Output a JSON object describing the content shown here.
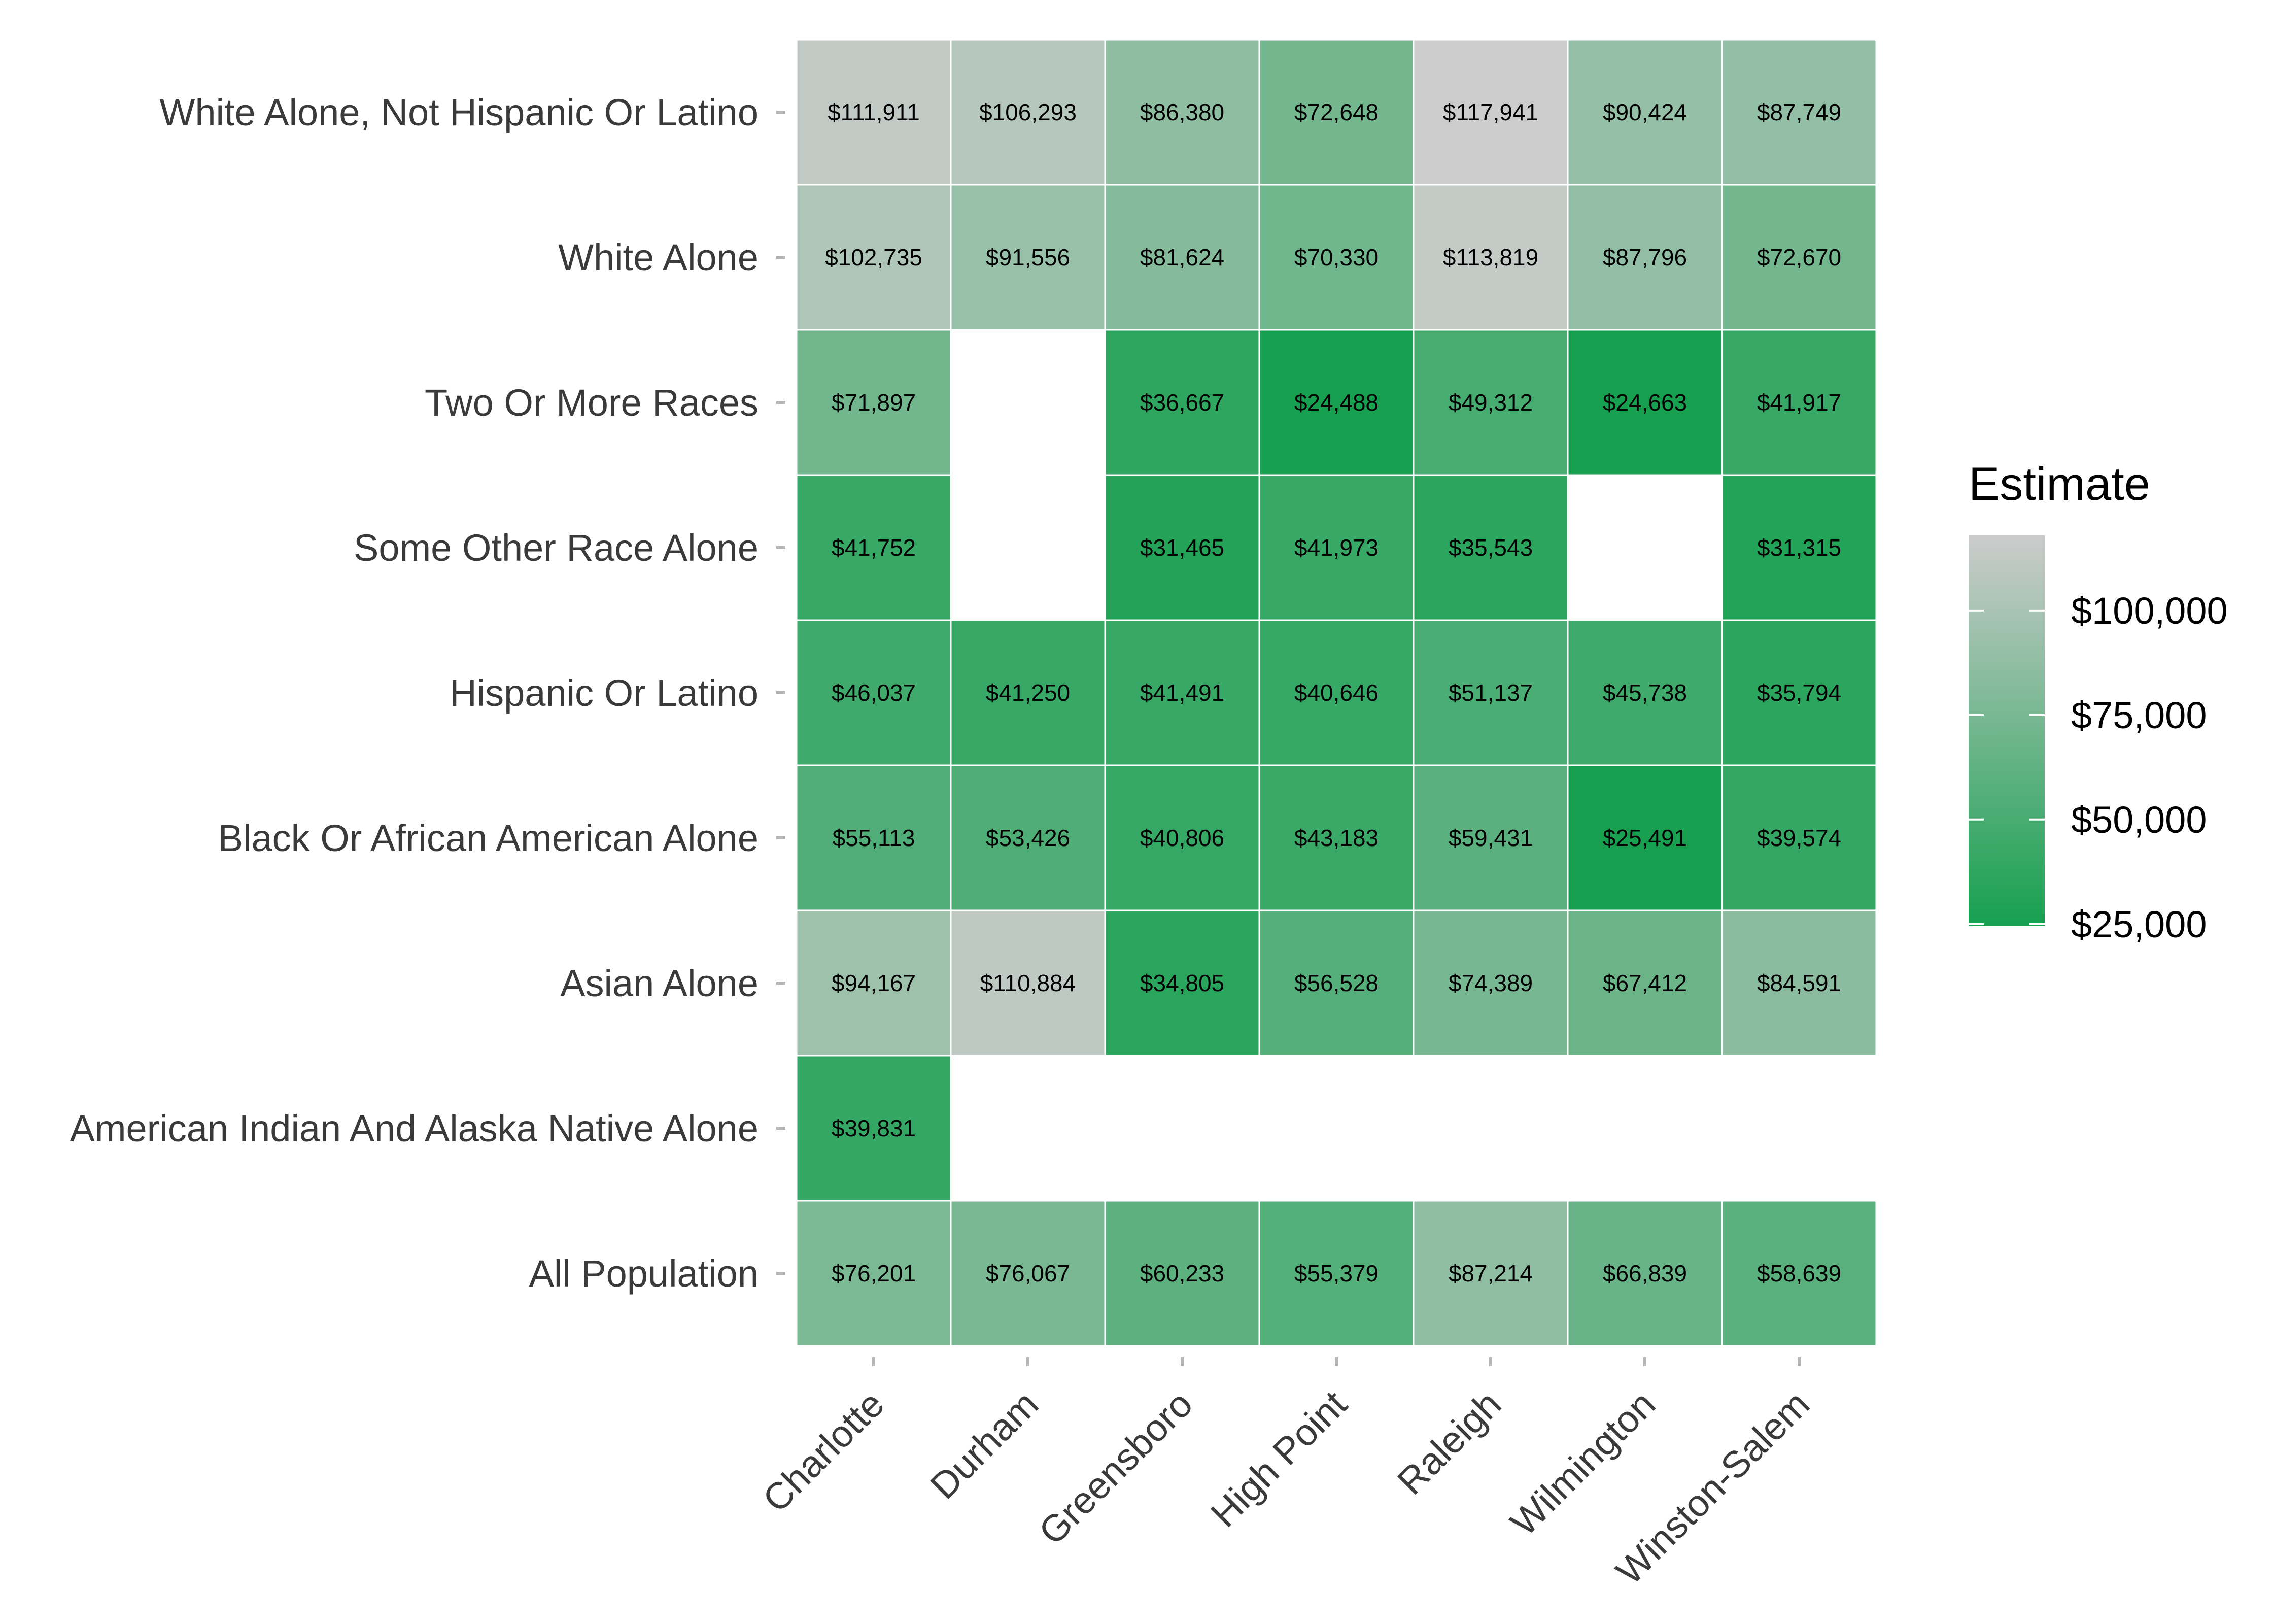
{
  "chart_data": {
    "type": "heatmap",
    "title": "",
    "xlabel": "",
    "ylabel": "",
    "x_categories": [
      "Charlotte",
      "Durham",
      "Greensboro",
      "High Point",
      "Raleigh",
      "Wilmington",
      "Winston-Salem"
    ],
    "y_categories": [
      "White Alone, Not Hispanic Or Latino",
      "White Alone",
      "Two Or More Races",
      "Some Other Race Alone",
      "Hispanic Or Latino",
      "Black Or African American Alone",
      "Asian Alone",
      "American Indian And Alaska Native Alone",
      "All Population"
    ],
    "values": [
      [
        111911,
        106293,
        86380,
        72648,
        117941,
        90424,
        87749
      ],
      [
        102735,
        91556,
        81624,
        70330,
        113819,
        87796,
        72670
      ],
      [
        71897,
        null,
        36667,
        24488,
        49312,
        24663,
        41917
      ],
      [
        41752,
        null,
        31465,
        41973,
        35543,
        null,
        31315
      ],
      [
        46037,
        41250,
        41491,
        40646,
        51137,
        45738,
        35794
      ],
      [
        55113,
        53426,
        40806,
        43183,
        59431,
        25491,
        39574
      ],
      [
        94167,
        110884,
        34805,
        56528,
        74389,
        67412,
        84591
      ],
      [
        39831,
        null,
        null,
        null,
        null,
        null,
        null
      ],
      [
        76201,
        76067,
        60233,
        55379,
        87214,
        66839,
        58639
      ]
    ],
    "cell_labels": [
      [
        "$111,911",
        "$106,293",
        "$86,380",
        "$72,648",
        "$117,941",
        "$90,424",
        "$87,749"
      ],
      [
        "$102,735",
        "$91,556",
        "$81,624",
        "$70,330",
        "$113,819",
        "$87,796",
        "$72,670"
      ],
      [
        "$71,897",
        null,
        "$36,667",
        "$24,488",
        "$49,312",
        "$24,663",
        "$41,917"
      ],
      [
        "$41,752",
        null,
        "$31,465",
        "$41,973",
        "$35,543",
        null,
        "$31,315"
      ],
      [
        "$46,037",
        "$41,250",
        "$41,491",
        "$40,646",
        "$51,137",
        "$45,738",
        "$35,794"
      ],
      [
        "$55,113",
        "$53,426",
        "$40,806",
        "$43,183",
        "$59,431",
        "$25,491",
        "$39,574"
      ],
      [
        "$94,167",
        "$110,884",
        "$34,805",
        "$56,528",
        "$74,389",
        "$67,412",
        "$84,591"
      ],
      [
        "$39,831",
        null,
        null,
        null,
        null,
        null,
        null
      ],
      [
        "$76,201",
        "$76,067",
        "$60,233",
        "$55,379",
        "$87,214",
        "$66,839",
        "$58,639"
      ]
    ],
    "legend": {
      "title": "Estimate",
      "position": "right",
      "range": [
        24488,
        117941
      ],
      "breaks": [
        25000,
        50000,
        75000,
        100000
      ],
      "break_labels": [
        "$25,000",
        "$50,000",
        "$75,000",
        "$100,000"
      ]
    },
    "colors": {
      "low": "#16a04f",
      "high": "#cccccc",
      "cell_border": "#ffffff",
      "tick": "#b5b5b5"
    },
    "grid": false
  }
}
